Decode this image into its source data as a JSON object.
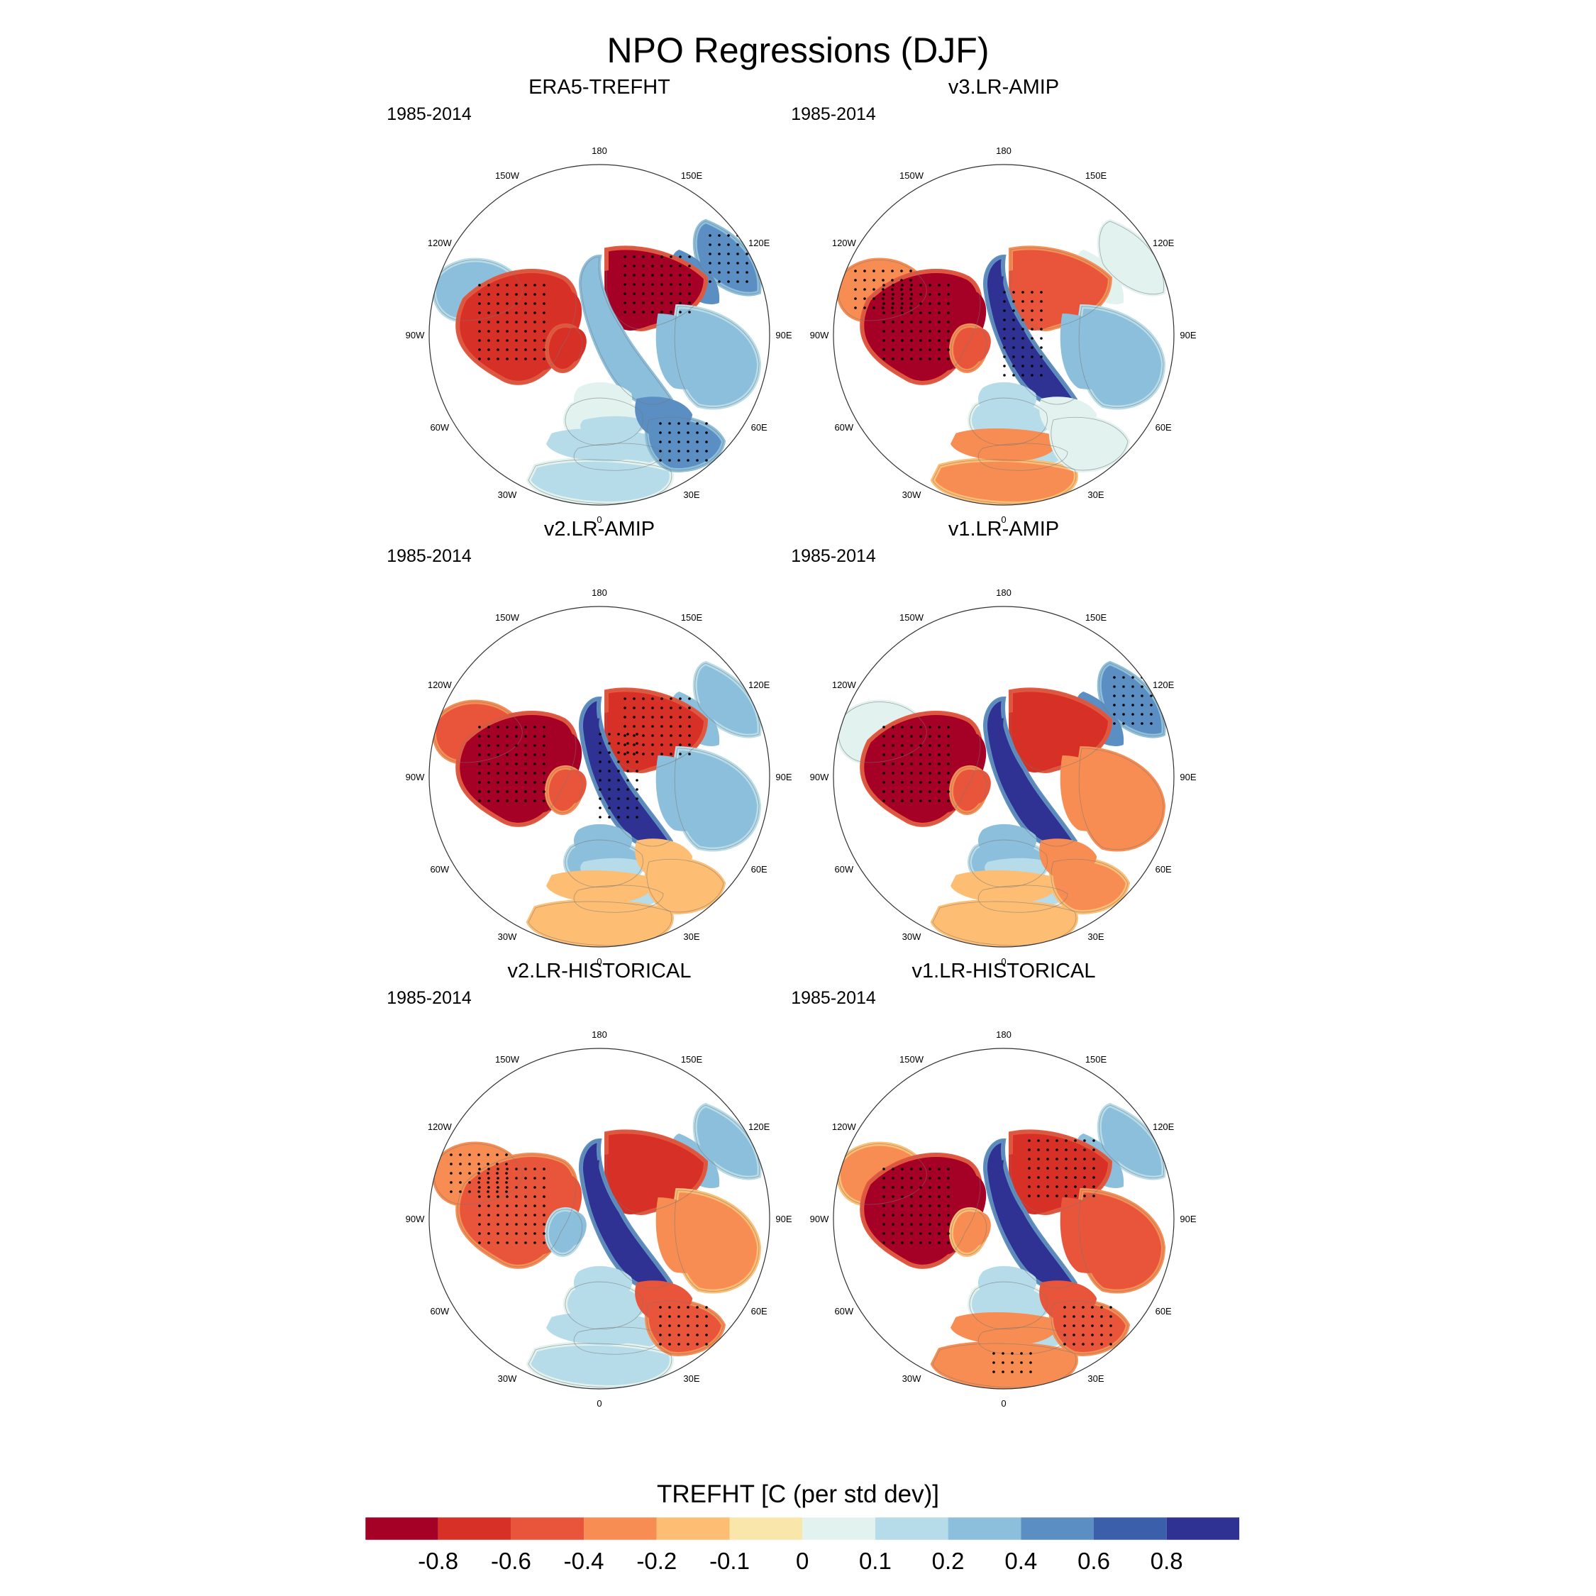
{
  "figure": {
    "title": "NPO Regressions (DJF)"
  },
  "panels": [
    {
      "title": "ERA5-TREFHT",
      "period": "1985-2014",
      "pattern": {
        "na": -0.7,
        "nw": 0.25,
        "siberia": -0.9,
        "east_siberia": 0.35,
        "central_asia": 0.25,
        "europe": 0.05,
        "north_africa": 0.15,
        "greenland": -0.7,
        "east_asia": 0.45,
        "mediterranean": 0.1,
        "middle_east": 0.45
      },
      "stipple": [
        "na",
        "siberia",
        "east_asia",
        "middle_east"
      ]
    },
    {
      "title": "v3.LR-AMIP",
      "period": "1985-2014",
      "pattern": {
        "na": -0.9,
        "nw": -0.35,
        "siberia": -0.55,
        "east_siberia": 0.9,
        "central_asia": 0.2,
        "europe": 0.1,
        "north_africa": -0.25,
        "greenland": -0.6,
        "east_asia": 0.05,
        "mediterranean": 0.1,
        "middle_east": 0.05
      },
      "stipple": [
        "na",
        "east_siberia",
        "nw"
      ]
    },
    {
      "title": "v2.LR-AMIP",
      "period": "1985-2014",
      "pattern": {
        "na": -0.9,
        "nw": -0.45,
        "siberia": -0.8,
        "east_siberia": 0.9,
        "central_asia": 0.2,
        "europe": 0.2,
        "north_africa": -0.2,
        "greenland": -0.6,
        "east_asia": 0.3,
        "mediterranean": 0.1,
        "middle_east": -0.2
      },
      "stipple": [
        "na",
        "siberia",
        "east_siberia"
      ]
    },
    {
      "title": "v1.LR-AMIP",
      "period": "1985-2014",
      "pattern": {
        "na": -0.9,
        "nw": 0.05,
        "siberia": -0.8,
        "east_siberia": 0.9,
        "central_asia": -0.4,
        "europe": 0.2,
        "north_africa": -0.2,
        "greenland": -0.5,
        "east_asia": 0.4,
        "mediterranean": 0.1,
        "middle_east": -0.3
      },
      "stipple": [
        "na",
        "east_asia"
      ]
    },
    {
      "title": "v2.LR-HISTORICAL",
      "period": "1985-2014",
      "pattern": {
        "na": -0.55,
        "nw": -0.4,
        "siberia": -0.8,
        "east_siberia": 0.8,
        "central_asia": -0.3,
        "europe": 0.15,
        "north_africa": 0.1,
        "greenland": 0.2,
        "east_asia": 0.2,
        "mediterranean": 0.1,
        "middle_east": -0.5
      },
      "stipple": [
        "nw",
        "na",
        "middle_east"
      ]
    },
    {
      "title": "v1.LR-HISTORICAL",
      "period": "1985-2014",
      "pattern": {
        "na": -0.9,
        "nw": -0.3,
        "siberia": -0.75,
        "east_siberia": 0.9,
        "central_asia": -0.5,
        "europe": 0.1,
        "north_africa": -0.35,
        "greenland": -0.25,
        "east_asia": 0.2,
        "mediterranean": 0.1,
        "middle_east": -0.6
      },
      "stipple": [
        "na",
        "siberia",
        "middle_east",
        "north_africa"
      ]
    }
  ],
  "map_axis": {
    "lon_labels": [
      "180",
      "150E",
      "120E",
      "90E",
      "60E",
      "30E",
      "0",
      "30W",
      "60W",
      "90W",
      "120W",
      "150W"
    ]
  },
  "colorbar": {
    "title": "TREFHT [C (per std dev)]",
    "levels": [
      "-0.8",
      "-0.6",
      "-0.4",
      "-0.2",
      "-0.1",
      "0",
      "0.1",
      "0.2",
      "0.4",
      "0.6",
      "0.8"
    ],
    "colors": [
      "#a50026",
      "#d73027",
      "#e8553b",
      "#f78d52",
      "#fdbd73",
      "#f9e6ab",
      "#e2f2ef",
      "#b6dcea",
      "#8cbfdc",
      "#5b8ec3",
      "#3c5fab",
      "#2f3193"
    ]
  }
}
